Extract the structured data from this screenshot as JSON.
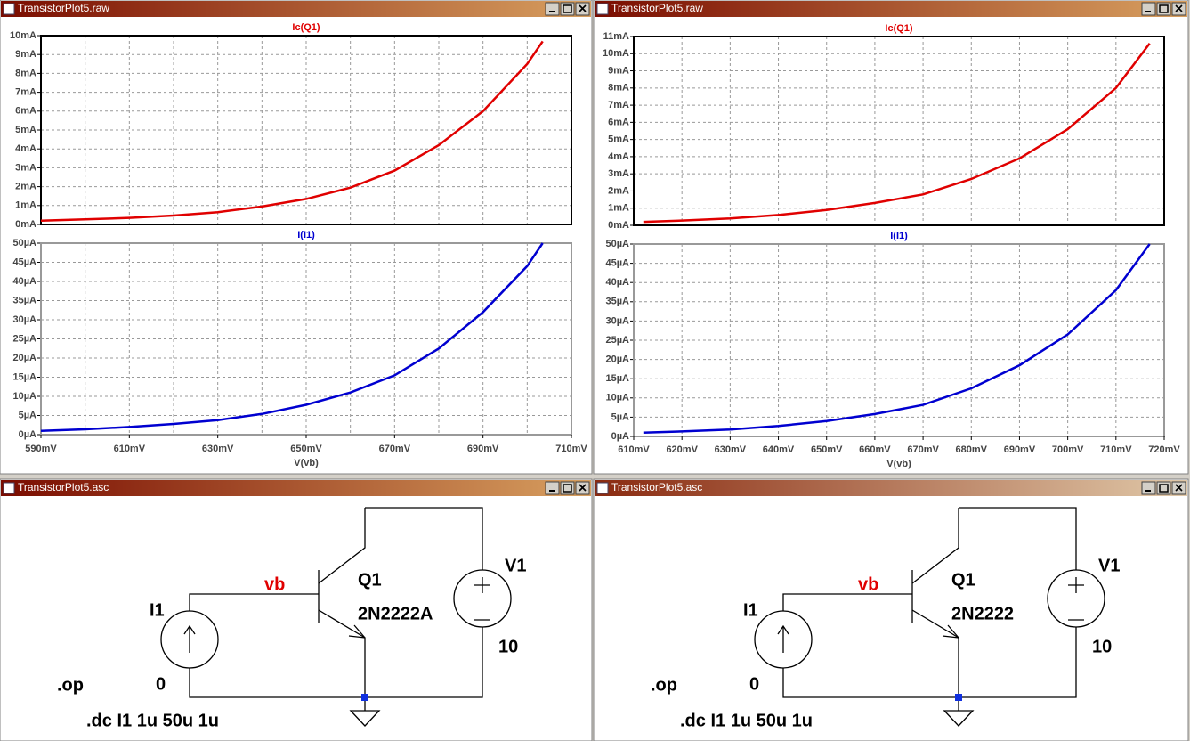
{
  "windows": [
    {
      "title": "TransistorPlot5.raw"
    },
    {
      "title": "TransistorPlot5.raw"
    },
    {
      "title": "TransistorPlot5.asc"
    },
    {
      "title": "TransistorPlot5.asc"
    }
  ],
  "chart_data": [
    {
      "type": "line",
      "xlabel": "V(vb)",
      "xlim": [
        590,
        710
      ],
      "xticks": [
        {
          "value": 590,
          "label": "590mV"
        },
        {
          "value": 610,
          "label": "610mV"
        },
        {
          "value": 630,
          "label": "630mV"
        },
        {
          "value": 650,
          "label": "650mV"
        },
        {
          "value": 670,
          "label": "670mV"
        },
        {
          "value": 690,
          "label": "690mV"
        },
        {
          "value": 710,
          "label": "710mV"
        }
      ],
      "xminor": [
        600,
        620,
        640,
        660,
        680,
        700
      ],
      "x": [
        590,
        600,
        610,
        620,
        630,
        640,
        650,
        660,
        670,
        680,
        690,
        700,
        703.5
      ],
      "panes": [
        {
          "title": "Ic(Q1)",
          "color": "#e00000",
          "ylim": [
            0,
            10
          ],
          "yticks": [
            {
              "value": 0,
              "label": "0mA"
            },
            {
              "value": 1,
              "label": "1mA"
            },
            {
              "value": 2,
              "label": "2mA"
            },
            {
              "value": 3,
              "label": "3mA"
            },
            {
              "value": 4,
              "label": "4mA"
            },
            {
              "value": 5,
              "label": "5mA"
            },
            {
              "value": 6,
              "label": "6mA"
            },
            {
              "value": 7,
              "label": "7mA"
            },
            {
              "value": 8,
              "label": "8mA"
            },
            {
              "value": 9,
              "label": "9mA"
            },
            {
              "value": 10,
              "label": "10mA"
            }
          ],
          "values": [
            0.2,
            0.27,
            0.35,
            0.47,
            0.65,
            0.95,
            1.35,
            1.95,
            2.85,
            4.2,
            6.0,
            8.5,
            9.7
          ]
        },
        {
          "title": "I(I1)",
          "color": "#0000d0",
          "ylim": [
            0,
            50
          ],
          "yticks": [
            {
              "value": 0,
              "label": "0µA"
            },
            {
              "value": 5,
              "label": "5µA"
            },
            {
              "value": 10,
              "label": "10µA"
            },
            {
              "value": 15,
              "label": "15µA"
            },
            {
              "value": 20,
              "label": "20µA"
            },
            {
              "value": 25,
              "label": "25µA"
            },
            {
              "value": 30,
              "label": "30µA"
            },
            {
              "value": 35,
              "label": "35µA"
            },
            {
              "value": 40,
              "label": "40µA"
            },
            {
              "value": 45,
              "label": "45µA"
            },
            {
              "value": 50,
              "label": "50µA"
            }
          ],
          "values": [
            1,
            1.4,
            2,
            2.8,
            3.8,
            5.4,
            7.8,
            11,
            15.5,
            22.5,
            32,
            44,
            50
          ]
        }
      ]
    },
    {
      "type": "line",
      "xlabel": "V(vb)",
      "xlim": [
        610,
        720
      ],
      "xticks": [
        {
          "value": 610,
          "label": "610mV"
        },
        {
          "value": 620,
          "label": "620mV"
        },
        {
          "value": 630,
          "label": "630mV"
        },
        {
          "value": 640,
          "label": "640mV"
        },
        {
          "value": 650,
          "label": "650mV"
        },
        {
          "value": 660,
          "label": "660mV"
        },
        {
          "value": 670,
          "label": "670mV"
        },
        {
          "value": 680,
          "label": "680mV"
        },
        {
          "value": 690,
          "label": "690mV"
        },
        {
          "value": 700,
          "label": "700mV"
        },
        {
          "value": 710,
          "label": "710mV"
        },
        {
          "value": 720,
          "label": "720mV"
        }
      ],
      "xminor": [],
      "x": [
        612,
        620,
        630,
        640,
        650,
        660,
        670,
        680,
        690,
        700,
        710,
        717
      ],
      "panes": [
        {
          "title": "Ic(Q1)",
          "color": "#e00000",
          "ylim": [
            0,
            11
          ],
          "yticks": [
            {
              "value": 0,
              "label": "0mA"
            },
            {
              "value": 1,
              "label": "1mA"
            },
            {
              "value": 2,
              "label": "2mA"
            },
            {
              "value": 3,
              "label": "3mA"
            },
            {
              "value": 4,
              "label": "4mA"
            },
            {
              "value": 5,
              "label": "5mA"
            },
            {
              "value": 6,
              "label": "6mA"
            },
            {
              "value": 7,
              "label": "7mA"
            },
            {
              "value": 8,
              "label": "8mA"
            },
            {
              "value": 9,
              "label": "9mA"
            },
            {
              "value": 10,
              "label": "10mA"
            },
            {
              "value": 11,
              "label": "11mA"
            }
          ],
          "values": [
            0.2,
            0.28,
            0.4,
            0.6,
            0.9,
            1.3,
            1.8,
            2.7,
            3.9,
            5.6,
            8.0,
            10.6
          ]
        },
        {
          "title": "I(I1)",
          "color": "#0000d0",
          "ylim": [
            0,
            50
          ],
          "yticks": [
            {
              "value": 0,
              "label": "0µA"
            },
            {
              "value": 5,
              "label": "5µA"
            },
            {
              "value": 10,
              "label": "10µA"
            },
            {
              "value": 15,
              "label": "15µA"
            },
            {
              "value": 20,
              "label": "20µA"
            },
            {
              "value": 25,
              "label": "25µA"
            },
            {
              "value": 30,
              "label": "30µA"
            },
            {
              "value": 35,
              "label": "35µA"
            },
            {
              "value": 40,
              "label": "40µA"
            },
            {
              "value": 45,
              "label": "45µA"
            },
            {
              "value": 50,
              "label": "50µA"
            }
          ],
          "values": [
            1,
            1.3,
            1.8,
            2.7,
            4,
            5.8,
            8.2,
            12.5,
            18.5,
            26.5,
            38,
            50
          ]
        }
      ]
    }
  ],
  "schematics": [
    {
      "net_label": "vb",
      "transistor": {
        "name": "Q1",
        "model": "2N2222A"
      },
      "voltage_source": {
        "name": "V1",
        "value": "10"
      },
      "current_source": {
        "name": "I1",
        "value": "0"
      },
      "directives": [
        ".op",
        ".dc I1 1u 50u 1u"
      ]
    },
    {
      "net_label": "vb",
      "transistor": {
        "name": "Q1",
        "model": "2N2222"
      },
      "voltage_source": {
        "name": "V1",
        "value": "10"
      },
      "current_source": {
        "name": "I1",
        "value": "0"
      },
      "directives": [
        ".op",
        ".dc I1 1u 50u 1u"
      ]
    }
  ]
}
